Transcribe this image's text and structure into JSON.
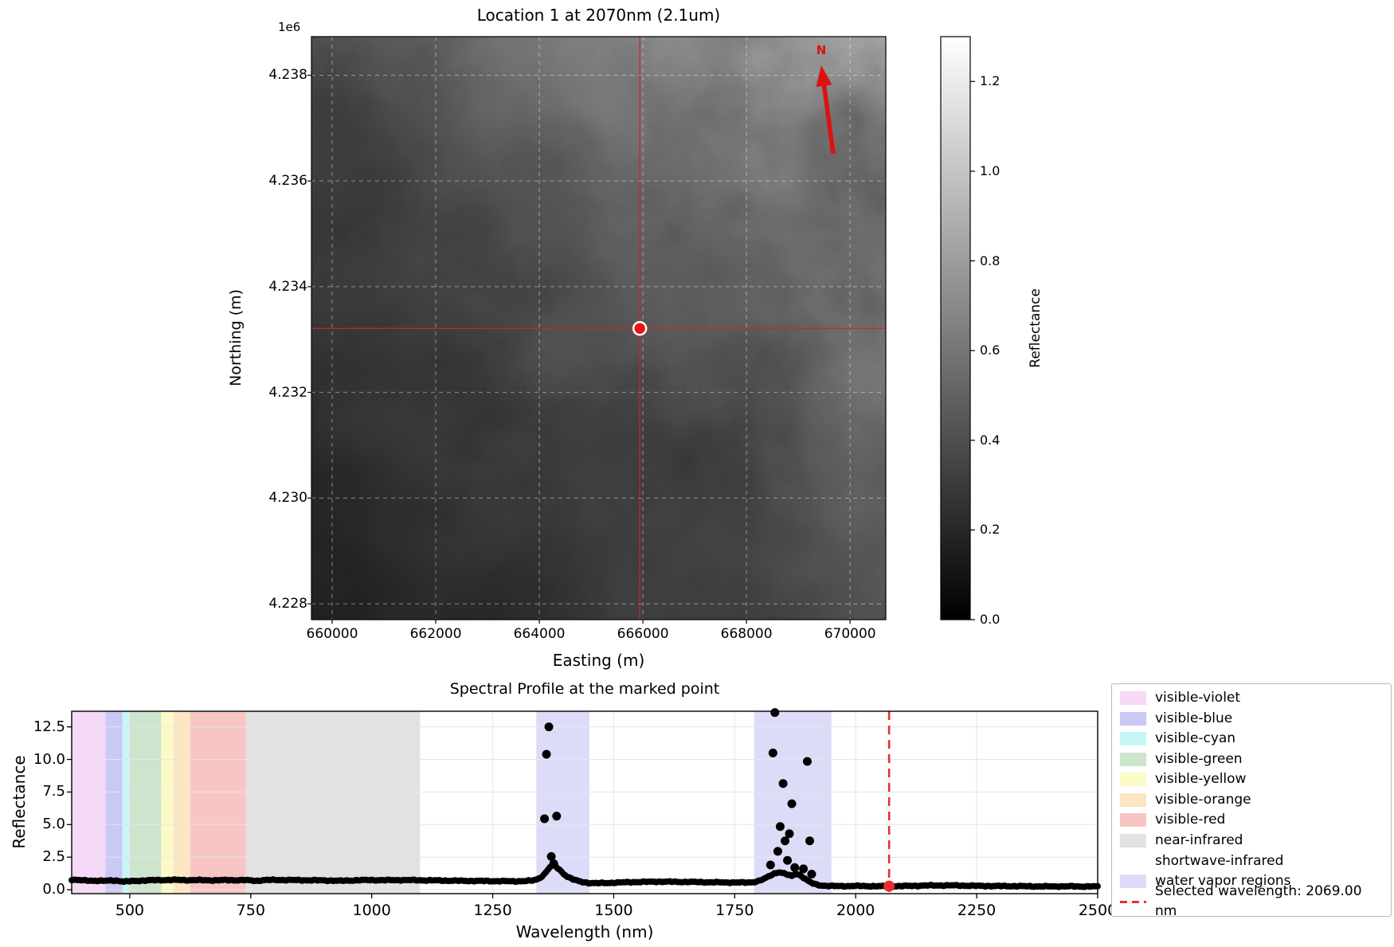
{
  "map_panel": {
    "title": "Location 1 at 2070nm (2.1um)",
    "axis_offset_label": "1e6",
    "xlabel": "Easting (m)",
    "ylabel": "Northing (m)",
    "xlim": [
      659600,
      670690
    ],
    "ylim": [
      4227700,
      4238730
    ],
    "xticks": [
      660000,
      662000,
      664000,
      666000,
      668000,
      670000
    ],
    "xtick_labels": [
      "660000",
      "662000",
      "664000",
      "666000",
      "668000",
      "670000"
    ],
    "yticks": [
      4228000,
      4230000,
      4232000,
      4234000,
      4236000,
      4238000
    ],
    "ytick_labels": [
      "4.228",
      "4.230",
      "4.232",
      "4.234",
      "4.236",
      "4.238"
    ],
    "north_arrow_label": "N",
    "north_arrow_color": "#e01010",
    "crosshair_color": "#cd2626",
    "marker": {
      "easting": 665940,
      "northing": 4233210,
      "color": "#ee1111",
      "edge_color": "#ffffff"
    },
    "colorbar": {
      "label": "Reflectance",
      "colormap": "gray",
      "vmin": 0.0,
      "vmax": 1.3,
      "ticks": [
        0.0,
        0.2,
        0.4,
        0.6,
        0.8,
        1.0,
        1.2
      ],
      "tick_labels": [
        "0.0",
        "0.2",
        "0.4",
        "0.6",
        "0.8",
        "1.0",
        "1.2"
      ]
    }
  },
  "chart_data": {
    "type": "scatter",
    "title": "Spectral Profile at the marked point",
    "xlabel": "Wavelength (nm)",
    "ylabel": "Reflectance",
    "xlim": [
      380,
      2500
    ],
    "ylim": [
      -0.3,
      13.7
    ],
    "xticks": [
      500,
      750,
      1000,
      1250,
      1500,
      1750,
      2000,
      2250,
      2500
    ],
    "yticks": [
      0.0,
      2.5,
      5.0,
      7.5,
      10.0,
      12.5
    ],
    "ytick_labels": [
      "0.0",
      "2.5",
      "5.0",
      "7.5",
      "10.0",
      "12.5"
    ],
    "point_color": "#000000",
    "grid_color": "#e6e6e6",
    "sampling_step_nm": 4,
    "legend_position": "outside-right",
    "bands": [
      {
        "label": "visible-violet",
        "range": [
          380,
          450
        ],
        "color": "#f5d9f6"
      },
      {
        "label": "visible-blue",
        "range": [
          450,
          485
        ],
        "color": "#c9c9f3"
      },
      {
        "label": "visible-cyan",
        "range": [
          485,
          500
        ],
        "color": "#c6f6f6"
      },
      {
        "label": "visible-green",
        "range": [
          500,
          565
        ],
        "color": "#cde4cd"
      },
      {
        "label": "visible-yellow",
        "range": [
          565,
          590
        ],
        "color": "#fbfbc8"
      },
      {
        "label": "visible-orange",
        "range": [
          590,
          625
        ],
        "color": "#fce5c2"
      },
      {
        "label": "visible-red",
        "range": [
          625,
          740
        ],
        "color": "#f8c5c5"
      },
      {
        "label": "near-infrared",
        "range": [
          740,
          1100
        ],
        "color": "#e2e2e2"
      },
      {
        "label": "shortwave-infrared",
        "range": [
          1100,
          2500
        ],
        "color": "#ffffff"
      },
      {
        "label": "water vapor regions",
        "ranges": [
          [
            1340,
            1450
          ],
          [
            1790,
            1950
          ]
        ],
        "color": "#dddcf8"
      }
    ],
    "selected": {
      "wavelength": 2069.0,
      "reflectance": 0.27,
      "color": "#e62e2e",
      "legend_label": "Selected wavelength: 2069.00 nm"
    },
    "baseline_anchors": [
      [
        380,
        0.78
      ],
      [
        392,
        0.74
      ],
      [
        405,
        0.71
      ],
      [
        420,
        0.7
      ],
      [
        435,
        0.69
      ],
      [
        450,
        0.68
      ],
      [
        462,
        0.71
      ],
      [
        475,
        0.7
      ],
      [
        488,
        0.62
      ],
      [
        500,
        0.65
      ],
      [
        515,
        0.68
      ],
      [
        530,
        0.71
      ],
      [
        548,
        0.73
      ],
      [
        565,
        0.74
      ],
      [
        582,
        0.75
      ],
      [
        600,
        0.75
      ],
      [
        615,
        0.74
      ],
      [
        625,
        0.73
      ],
      [
        640,
        0.74
      ],
      [
        658,
        0.73
      ],
      [
        675,
        0.72
      ],
      [
        690,
        0.73
      ],
      [
        705,
        0.74
      ],
      [
        720,
        0.73
      ],
      [
        738,
        0.74
      ],
      [
        755,
        0.7
      ],
      [
        762,
        0.68
      ],
      [
        775,
        0.73
      ],
      [
        790,
        0.75
      ],
      [
        810,
        0.75
      ],
      [
        835,
        0.74
      ],
      [
        860,
        0.73
      ],
      [
        885,
        0.72
      ],
      [
        910,
        0.71
      ],
      [
        935,
        0.68
      ],
      [
        950,
        0.7
      ],
      [
        970,
        0.73
      ],
      [
        1000,
        0.74
      ],
      [
        1030,
        0.73
      ],
      [
        1060,
        0.74
      ],
      [
        1090,
        0.73
      ],
      [
        1115,
        0.72
      ],
      [
        1140,
        0.71
      ],
      [
        1170,
        0.69
      ],
      [
        1200,
        0.68
      ],
      [
        1230,
        0.67
      ],
      [
        1260,
        0.66
      ],
      [
        1290,
        0.65
      ],
      [
        1315,
        0.66
      ],
      [
        1332,
        0.7
      ],
      [
        1342,
        0.8
      ],
      [
        1350,
        0.98
      ],
      [
        1357,
        1.2
      ],
      [
        1364,
        1.55
      ],
      [
        1371,
        1.82
      ],
      [
        1377,
        1.88
      ],
      [
        1383,
        1.7
      ],
      [
        1389,
        1.5
      ],
      [
        1395,
        1.28
      ],
      [
        1402,
        1.05
      ],
      [
        1410,
        0.9
      ],
      [
        1418,
        0.76
      ],
      [
        1427,
        0.66
      ],
      [
        1437,
        0.58
      ],
      [
        1450,
        0.52
      ],
      [
        1468,
        0.5
      ],
      [
        1487,
        0.52
      ],
      [
        1508,
        0.55
      ],
      [
        1535,
        0.58
      ],
      [
        1562,
        0.6
      ],
      [
        1590,
        0.62
      ],
      [
        1618,
        0.61
      ],
      [
        1645,
        0.6
      ],
      [
        1672,
        0.59
      ],
      [
        1700,
        0.57
      ],
      [
        1728,
        0.56
      ],
      [
        1755,
        0.55
      ],
      [
        1775,
        0.55
      ],
      [
        1790,
        0.59
      ],
      [
        1800,
        0.68
      ],
      [
        1809,
        0.8
      ],
      [
        1817,
        0.95
      ],
      [
        1824,
        1.1
      ],
      [
        1832,
        1.25
      ],
      [
        1841,
        1.35
      ],
      [
        1850,
        1.28
      ],
      [
        1859,
        1.15
      ],
      [
        1868,
        1.05
      ],
      [
        1877,
        1.25
      ],
      [
        1886,
        1.1
      ],
      [
        1894,
        0.88
      ],
      [
        1902,
        0.66
      ],
      [
        1910,
        0.5
      ],
      [
        1918,
        0.4
      ],
      [
        1928,
        0.33
      ],
      [
        1940,
        0.3
      ],
      [
        1955,
        0.28
      ],
      [
        1975,
        0.28
      ],
      [
        1998,
        0.29
      ],
      [
        2020,
        0.28
      ],
      [
        2045,
        0.27
      ],
      [
        2069,
        0.27
      ],
      [
        2095,
        0.28
      ],
      [
        2120,
        0.3
      ],
      [
        2145,
        0.32
      ],
      [
        2170,
        0.33
      ],
      [
        2195,
        0.33
      ],
      [
        2220,
        0.32
      ],
      [
        2245,
        0.3
      ],
      [
        2270,
        0.29
      ],
      [
        2295,
        0.28
      ],
      [
        2320,
        0.28
      ],
      [
        2345,
        0.27
      ],
      [
        2370,
        0.26
      ],
      [
        2395,
        0.25
      ],
      [
        2420,
        0.26
      ],
      [
        2445,
        0.26
      ],
      [
        2470,
        0.25
      ],
      [
        2500,
        0.25
      ]
    ],
    "outlier_points": [
      [
        1357,
        5.45
      ],
      [
        1361,
        10.4
      ],
      [
        1366,
        12.5
      ],
      [
        1371,
        2.55
      ],
      [
        1376,
        2.0
      ],
      [
        1382,
        5.65
      ],
      [
        1824,
        1.9
      ],
      [
        1829,
        10.5
      ],
      [
        1833,
        13.6
      ],
      [
        1839,
        2.95
      ],
      [
        1844,
        4.85
      ],
      [
        1850,
        8.15
      ],
      [
        1854,
        3.75
      ],
      [
        1859,
        2.25
      ],
      [
        1863,
        4.3
      ],
      [
        1868,
        6.6
      ],
      [
        1874,
        1.7
      ],
      [
        1892,
        1.6
      ],
      [
        1900,
        9.85
      ],
      [
        1905,
        3.75
      ],
      [
        1909,
        1.2
      ]
    ]
  }
}
